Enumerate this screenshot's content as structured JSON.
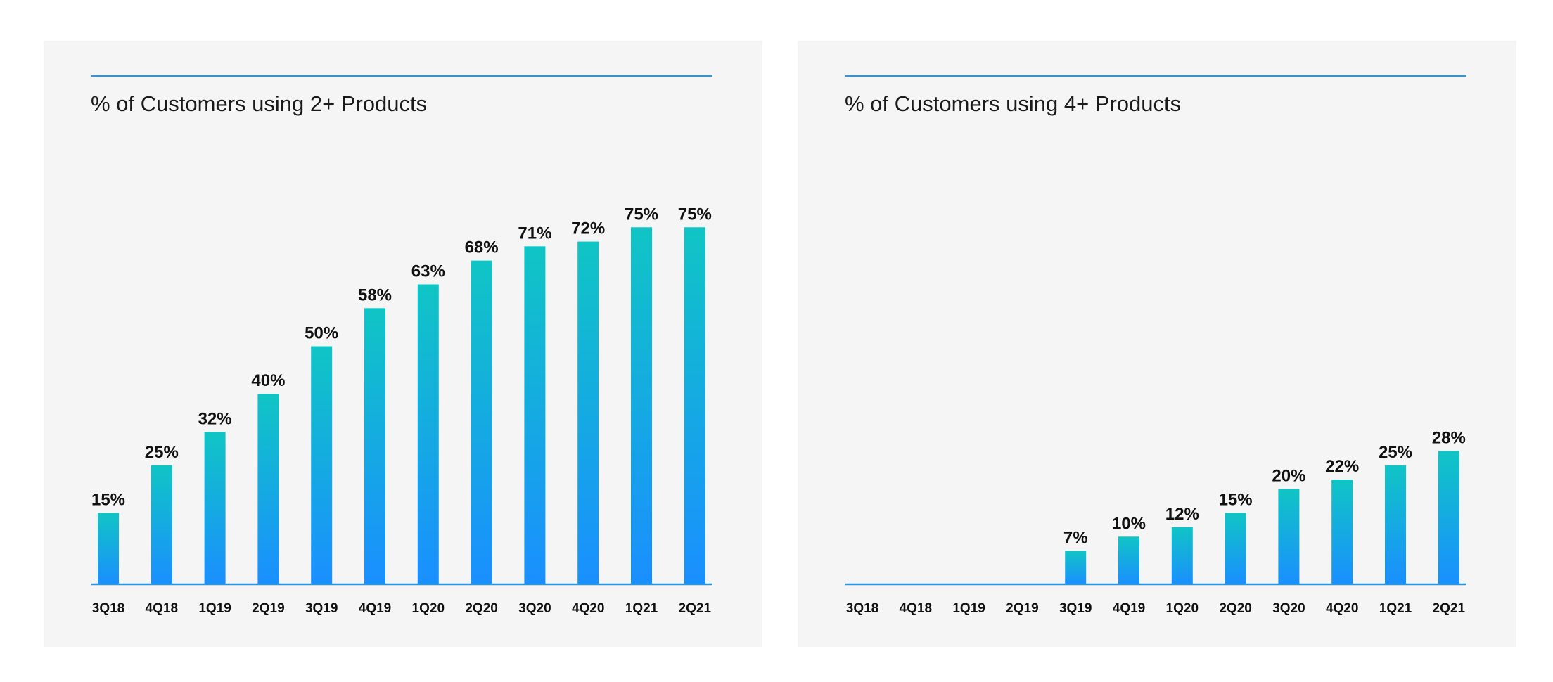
{
  "colors": {
    "rule_line": "#2b95e0",
    "axis_line": "#2b95e0",
    "bar_top": "#10c5c5",
    "bar_bottom": "#1a8fff",
    "panel_bg": "#f5f5f5"
  },
  "chart_data": [
    {
      "type": "bar",
      "title": "% of Customers using 2+ Products",
      "categories": [
        "3Q18",
        "4Q18",
        "1Q19",
        "2Q19",
        "3Q19",
        "4Q19",
        "1Q20",
        "2Q20",
        "3Q20",
        "4Q20",
        "1Q21",
        "2Q21"
      ],
      "values": [
        15,
        25,
        32,
        40,
        50,
        58,
        63,
        68,
        71,
        72,
        75,
        75
      ],
      "labels": [
        "15%",
        "25%",
        "32%",
        "40%",
        "50%",
        "58%",
        "63%",
        "68%",
        "71%",
        "72%",
        "75%",
        "75%"
      ],
      "ylim": [
        0,
        100
      ],
      "grid": false,
      "legend": "none"
    },
    {
      "type": "bar",
      "title": "% of Customers using 4+ Products",
      "categories": [
        "3Q18",
        "4Q18",
        "1Q19",
        "2Q19",
        "3Q19",
        "4Q19",
        "1Q20",
        "2Q20",
        "3Q20",
        "4Q20",
        "1Q21",
        "2Q21"
      ],
      "values": [
        null,
        null,
        null,
        null,
        7,
        10,
        12,
        15,
        20,
        22,
        25,
        28
      ],
      "labels": [
        "",
        "",
        "",
        "",
        "7%",
        "10%",
        "12%",
        "15%",
        "20%",
        "22%",
        "25%",
        "28%"
      ],
      "ylim": [
        0,
        100
      ],
      "grid": false,
      "legend": "none"
    }
  ]
}
